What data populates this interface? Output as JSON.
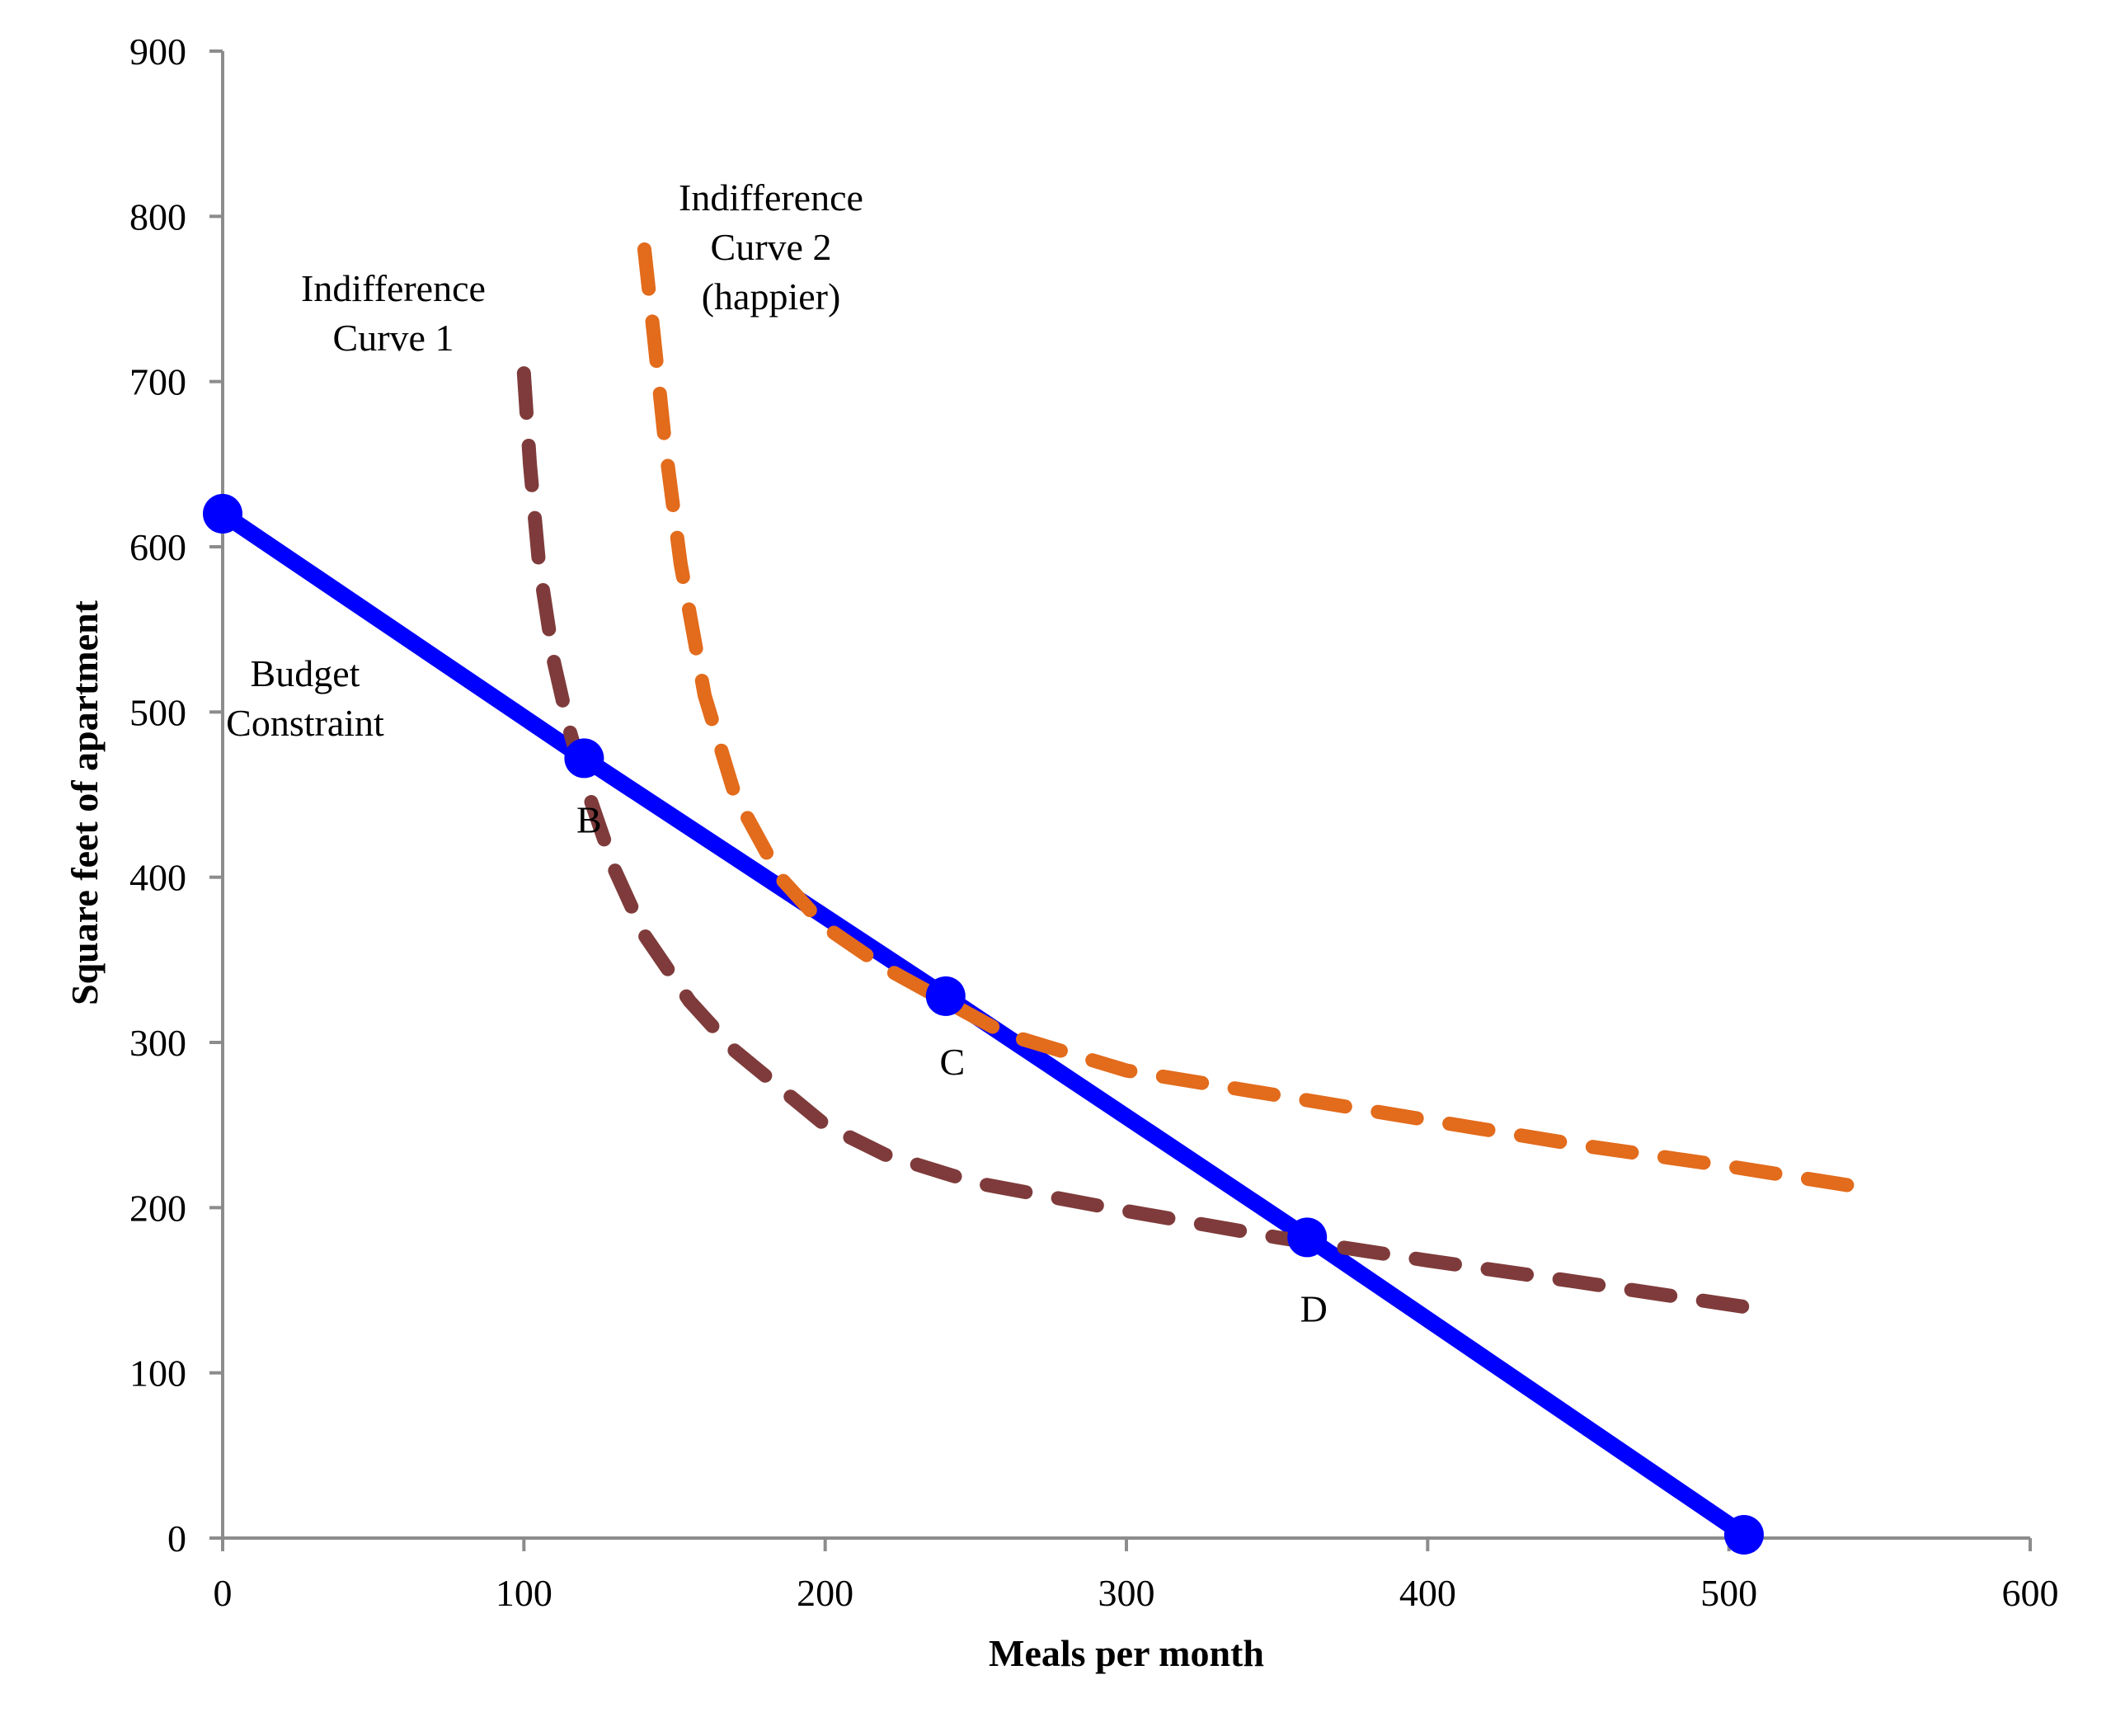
{
  "chart_data": {
    "type": "line",
    "xlabel": "Meals per month",
    "ylabel": "Square feet of apartment",
    "xlim": [
      0,
      600
    ],
    "ylim": [
      0,
      900
    ],
    "x_ticks": [
      "0",
      "100",
      "200",
      "300",
      "400",
      "500",
      "600"
    ],
    "y_ticks": [
      "0",
      "100",
      "200",
      "300",
      "400",
      "500",
      "600",
      "700",
      "800",
      "900"
    ],
    "grid": false,
    "series": [
      {
        "key": "budget",
        "style": "solid",
        "color": "#0000ff",
        "x": [
          0,
          120,
          240,
          360,
          505
        ],
        "y": [
          620,
          472,
          328,
          182,
          2
        ]
      },
      {
        "key": "ic1",
        "style": "dashed",
        "color": "#7f3b3b",
        "x": [
          100,
          102,
          105,
          110,
          115,
          120,
          130,
          140,
          155,
          170,
          190,
          200,
          220,
          250,
          300,
          350,
          400,
          450,
          505
        ],
        "y": [
          705,
          650,
          590,
          530,
          490,
          458,
          405,
          365,
          325,
          295,
          265,
          250,
          232,
          215,
          198,
          182,
          168,
          155,
          140
        ]
      },
      {
        "key": "ic2",
        "style": "dashed",
        "color": "#e26b1c",
        "x": [
          140,
          143,
          147,
          152,
          160,
          170,
          185,
          200,
          220,
          240,
          260,
          300,
          350,
          400,
          450,
          500,
          545
        ],
        "y": [
          780,
          730,
          660,
          590,
          510,
          450,
          400,
          370,
          345,
          325,
          305,
          283,
          268,
          253,
          238,
          225,
          212
        ]
      }
    ],
    "labeled_points": [
      {
        "label": "B",
        "x": 120,
        "y": 472
      },
      {
        "label": "C",
        "x": 240,
        "y": 328
      },
      {
        "label": "D",
        "x": 360,
        "y": 182
      }
    ],
    "annotations": [
      {
        "key": "budget",
        "lines": [
          "Budget",
          "Constraint"
        ]
      },
      {
        "key": "ic1",
        "lines": [
          "Indifference",
          "Curve 1"
        ]
      },
      {
        "key": "ic2",
        "lines": [
          "Indifference",
          "Curve 2",
          "(happier)"
        ]
      }
    ]
  }
}
